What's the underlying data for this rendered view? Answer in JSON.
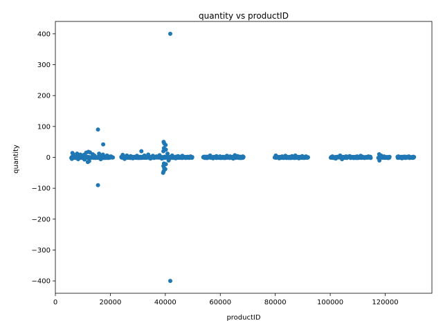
{
  "chart_data": {
    "type": "scatter",
    "title": "quantity vs productID",
    "xlabel": "productID",
    "ylabel": "quantity",
    "xlim": [
      0,
      137000
    ],
    "ylim": [
      -440,
      440
    ],
    "xticks": [
      0,
      20000,
      40000,
      60000,
      80000,
      100000,
      120000
    ],
    "xtick_labels": [
      "0",
      "20000",
      "40000",
      "60000",
      "80000",
      "100000",
      "120000"
    ],
    "yticks": [
      -400,
      -300,
      -200,
      -100,
      0,
      100,
      200,
      300,
      400
    ],
    "ytick_labels": [
      "−400",
      "−300",
      "−200",
      "−100",
      "0",
      "100",
      "200",
      "300",
      "400"
    ],
    "color": "#1f77b4",
    "points": [
      [
        41800,
        400
      ],
      [
        41800,
        -400
      ],
      [
        15500,
        90
      ],
      [
        15500,
        -90
      ],
      [
        17400,
        42
      ],
      [
        39400,
        50
      ],
      [
        39600,
        45
      ],
      [
        40100,
        40
      ],
      [
        39500,
        30
      ],
      [
        40200,
        25
      ],
      [
        39300,
        20
      ],
      [
        39500,
        -20
      ],
      [
        40200,
        -22
      ],
      [
        39300,
        -28
      ],
      [
        39600,
        -35
      ],
      [
        40000,
        -38
      ],
      [
        39400,
        -45
      ],
      [
        39200,
        -50
      ],
      [
        31300,
        20
      ],
      [
        12000,
        18
      ],
      [
        11200,
        15
      ],
      [
        12600,
        16
      ],
      [
        11800,
        -15
      ],
      [
        12300,
        -12
      ],
      [
        6200,
        14
      ],
      [
        6500,
        10
      ],
      [
        6000,
        -5
      ],
      [
        7900,
        12
      ],
      [
        8300,
        -6
      ],
      [
        9100,
        9
      ],
      [
        10400,
        8
      ],
      [
        10600,
        -7
      ],
      [
        13600,
        10
      ],
      [
        14200,
        6
      ],
      [
        15900,
        12
      ],
      [
        16500,
        -6
      ],
      [
        17300,
        9
      ],
      [
        18800,
        6
      ],
      [
        19600,
        2
      ],
      [
        20200,
        3
      ],
      [
        24500,
        8
      ],
      [
        25200,
        -5
      ],
      [
        26000,
        6
      ],
      [
        27400,
        4
      ],
      [
        28200,
        -3
      ],
      [
        29700,
        5
      ],
      [
        30500,
        -2
      ],
      [
        32400,
        6
      ],
      [
        33800,
        9
      ],
      [
        34600,
        -4
      ],
      [
        35500,
        5
      ],
      [
        36800,
        3
      ],
      [
        37900,
        7
      ],
      [
        38700,
        -4
      ],
      [
        40800,
        12
      ],
      [
        41200,
        -10
      ],
      [
        42500,
        6
      ],
      [
        43800,
        -3
      ],
      [
        44600,
        4
      ],
      [
        46200,
        5
      ],
      [
        47400,
        -2
      ],
      [
        49200,
        3
      ],
      [
        54200,
        2
      ],
      [
        55100,
        -2
      ],
      [
        56300,
        6
      ],
      [
        57400,
        -3
      ],
      [
        58600,
        4
      ],
      [
        59900,
        3
      ],
      [
        61200,
        -2
      ],
      [
        62400,
        5
      ],
      [
        63600,
        3
      ],
      [
        64700,
        -4
      ],
      [
        65300,
        7
      ],
      [
        66300,
        4
      ],
      [
        67200,
        -2
      ],
      [
        68200,
        3
      ],
      [
        80200,
        6
      ],
      [
        81400,
        -3
      ],
      [
        82500,
        3
      ],
      [
        83700,
        5
      ],
      [
        84900,
        -2
      ],
      [
        86100,
        4
      ],
      [
        87300,
        6
      ],
      [
        88600,
        -3
      ],
      [
        89800,
        4
      ],
      [
        91200,
        3
      ],
      [
        100800,
        3
      ],
      [
        102000,
        -4
      ],
      [
        103600,
        6
      ],
      [
        104300,
        -6
      ],
      [
        105700,
        3
      ],
      [
        107100,
        4
      ],
      [
        108500,
        -2
      ],
      [
        109800,
        3
      ],
      [
        111100,
        5
      ],
      [
        112500,
        -2
      ],
      [
        113900,
        3
      ],
      [
        114600,
        2
      ],
      [
        117800,
        10
      ],
      [
        117900,
        -10
      ],
      [
        118500,
        6
      ],
      [
        119600,
        3
      ],
      [
        121200,
        -2
      ],
      [
        124800,
        3
      ],
      [
        126100,
        -3
      ],
      [
        127300,
        2
      ],
      [
        128600,
        3
      ],
      [
        130200,
        2
      ]
    ],
    "bands": [
      [
        5800,
        21000
      ],
      [
        24000,
        39000
      ],
      [
        39000,
        49800
      ],
      [
        53800,
        68500
      ],
      [
        79800,
        92000
      ],
      [
        100200,
        114800
      ],
      [
        117500,
        121600
      ],
      [
        124500,
        130500
      ]
    ]
  }
}
